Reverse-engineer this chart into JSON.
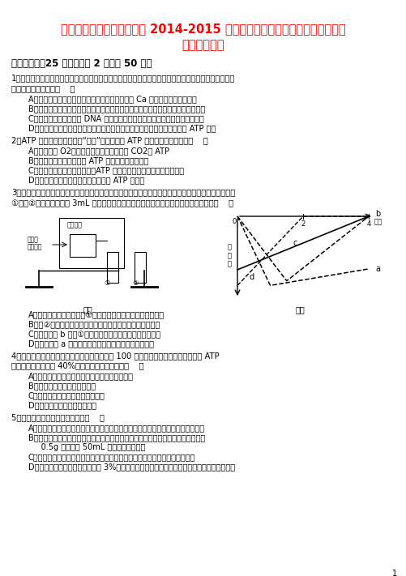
{
  "title_line1": "安徽省合肥市第一六八中学 2014-2015 学年高二生物下学期期末（暨新高三升",
  "title_line2": "学）考试试题",
  "title_color": "#FF0000",
  "title_fontsize": 13,
  "body_color": "#000000",
  "background_color": "#FFFFFF",
  "section_header": "一、选择题（25 小题，每题 2 分，共 50 分）",
  "q1_line1": "1．细胞是生物体结构和功能的基本单位，是由多种元素和化合物构成的生命系统，下列关于细胞组成成",
  "q1_line2": "分的说法不正确的是（    ）",
  "q1_opts": [
    "A．微量元素在细胞中含量很少，但不可替代，如 Ca 是构成细胞的必需元素",
    "B．蛋白质和核酸是所有细胞都含有的大分子有机物，单独存在时无法完成生命活动",
    "C．细胞质中存在作用于 DNA 的解旋酶，空间结构发生改变时可导致活性丧失",
    "D．进入寒冷环境时，人体肾上腺素和甲状腺激素的分泌增多，细胞产生的 ATP 变多"
  ],
  "q2_line1": "2．ATP 是细胞内流通的能量“通货”，下列关于 ATP 的说法中，正确的是（    ）",
  "q2_opts": [
    "A．只要提供 O2，线粒体就能为叶绿体提供 CO2和 ATP",
    "B．洋葱表皮细胞中能形成 ATP 的细胞器只有线粒体",
    "C．细胞吸收钾离子的过程中，ATP 中高能磷酸键的能量都会释放出来",
    "D．有氧呼吸和无氧呼吸的全过程都有 ATP 的合成"
  ],
  "q3_line1": "3．为研究酵母菌的发酵产物，某研究小组设计了如下图甲所示的装置，并将有关检测结果绘制成图乙。",
  "q3_line2": "①号、②号试管中均加入 3mL 蒸馏水和一定量的检验试剂，据图分析下列说法正确的是（    ）",
  "q3_opts": [
    "A．检验发酵产物酒精需向①号试管中滴加含重铬酸钾的浓硫酸",
    "B．设②号试管对照组是为了排除无关变量温度对实验的干扰",
    "C．图乙曲线 b 表示①号试管内玻璃管口气泡释放速率变化",
    "D．图乙曲线 a 表示酵母菌培养液中酵母菌数量变化规律"
  ],
  "q4_line1": "4．某些植物早午开花，花序细胞中有其他细胞 100 倍以上，但单位质量葡萄糖生成 ATP",
  "q4_line2": "的量却有其他细胞的 40%，表示有花序细胞的是（    ）",
  "q4_opts": [
    "A．初期发生有氧呼吸和无氧呼吸，无氧呼吸为主",
    "B．产生的热量远多于其他细胞",
    "C．只在细胞液基质中发生呼吸作用",
    "D．没有进行有氧呼吸第三阶段"
  ],
  "q5_line1": "5．下列关于实验的叙述正确的是（    ）",
  "q5_opts": [
    "A．探究温度对淀粉液淀粉酶活性的影响：检验淀粉是否分解的适宜试剂是斐林试剂",
    "B．用高倍显微镜观察叶片上表皮细胞和线粒体的实验中，在洁净的玻片中央一滴用",
    "     0.5g 健那绿和 50mL 蒸馏水配制的染液",
    "C．用高倍显微镜观察叶绿体和线粒体实验中，看到的是它们生活状态下的形态",
    "D．探究温度对酶活性的影响，向 3%过氧化氢溶液中加入不同温度下保温后的过氧化氢酶溶液"
  ],
  "page_num": "1"
}
